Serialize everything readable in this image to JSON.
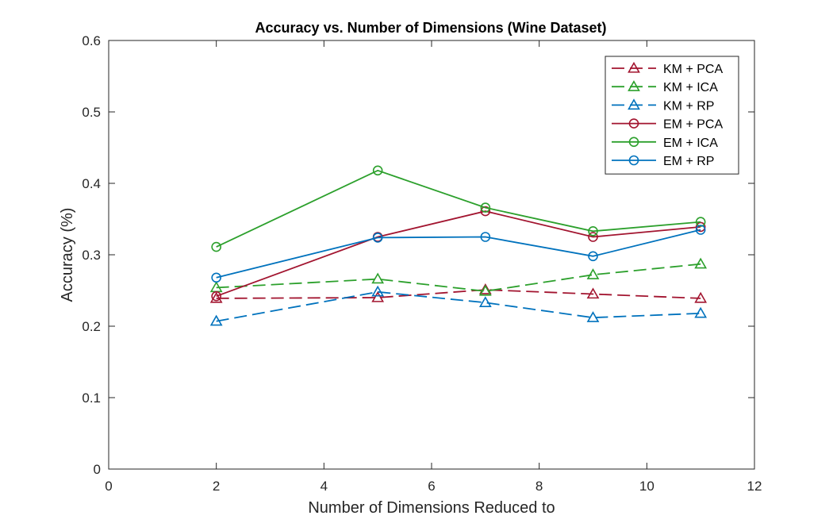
{
  "chart_data": {
    "type": "line",
    "title": "Accuracy vs. Number of Dimensions (Wine Dataset)",
    "xlabel": "Number of Dimensions Reduced to",
    "ylabel": "Accuracy (%)",
    "xlim": [
      0,
      12
    ],
    "ylim": [
      0,
      0.6
    ],
    "xticks": [
      0,
      2,
      4,
      6,
      8,
      10,
      12
    ],
    "yticks": [
      0,
      0.1,
      0.2,
      0.3,
      0.4,
      0.5,
      0.6
    ],
    "xtick_labels": [
      "0",
      "2",
      "4",
      "6",
      "8",
      "10",
      "12"
    ],
    "ytick_labels": [
      "0",
      "0.1",
      "0.2",
      "0.3",
      "0.4",
      "0.5",
      "0.6"
    ],
    "grid": false,
    "legend_position": "top-right",
    "x": [
      2,
      5,
      7,
      9,
      11
    ],
    "series": [
      {
        "name": "KM + PCA",
        "color": "#A2142F",
        "dash": "dashed",
        "marker": "triangle",
        "values": [
          0.239,
          0.24,
          0.251,
          0.245,
          0.239
        ]
      },
      {
        "name": "KM + ICA",
        "color": "#2CA02C",
        "dash": "dashed",
        "marker": "triangle",
        "values": [
          0.254,
          0.266,
          0.249,
          0.272,
          0.287
        ]
      },
      {
        "name": "KM + RP",
        "color": "#0072BD",
        "dash": "dashed",
        "marker": "triangle",
        "values": [
          0.207,
          0.248,
          0.233,
          0.212,
          0.218
        ]
      },
      {
        "name": "EM + PCA",
        "color": "#A2142F",
        "dash": "solid",
        "marker": "circle",
        "values": [
          0.242,
          0.325,
          0.361,
          0.325,
          0.339
        ]
      },
      {
        "name": "EM + ICA",
        "color": "#2CA02C",
        "dash": "solid",
        "marker": "circle",
        "values": [
          0.311,
          0.418,
          0.366,
          0.333,
          0.346
        ]
      },
      {
        "name": "EM + RP",
        "color": "#0072BD",
        "dash": "solid",
        "marker": "circle",
        "values": [
          0.268,
          0.324,
          0.325,
          0.298,
          0.335
        ]
      }
    ]
  }
}
